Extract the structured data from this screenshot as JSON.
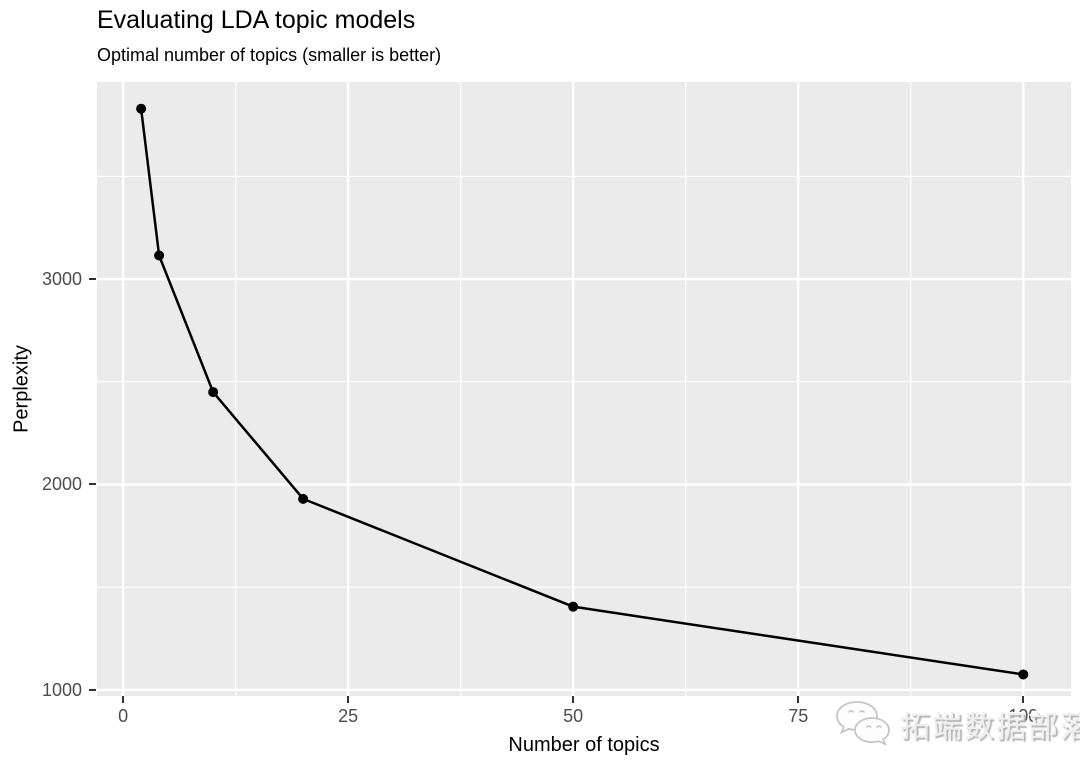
{
  "header": {
    "title": "Evaluating LDA topic models",
    "subtitle": "Optimal number of topics (smaller is better)"
  },
  "chart_data": {
    "type": "line",
    "title": "Evaluating LDA topic models",
    "subtitle": "Optimal number of topics (smaller is better)",
    "xlabel": "Number of topics",
    "ylabel": "Perplexity",
    "series": [
      {
        "name": "perplexity",
        "x": [
          2,
          4,
          10,
          20,
          50,
          100
        ],
        "y": [
          3830,
          3115,
          2450,
          1930,
          1405,
          1075
        ]
      }
    ],
    "x_major_ticks": [
      0,
      25,
      50,
      75,
      100
    ],
    "x_minor_ticks": [
      12.5,
      37.5,
      62.5,
      87.5
    ],
    "y_major_ticks": [
      1000,
      2000,
      3000
    ],
    "y_minor_ticks": [
      1500,
      2500,
      3500
    ],
    "xlim": [
      -2.9,
      105.3
    ],
    "ylim": [
      970,
      3960
    ],
    "grid": true,
    "legend_position": "none",
    "style": {
      "panel_bg": "#EBEBEB",
      "grid_color": "#FFFFFF",
      "line_color": "#000000",
      "point_color": "#000000",
      "tick_label_color": "#4D4D4D",
      "tick_mark_color": "#333333",
      "title_color": "#000000"
    }
  },
  "watermark": {
    "icon": "wechat-icon",
    "text": "拓端数据部落",
    "color": "#EFEFEF"
  }
}
